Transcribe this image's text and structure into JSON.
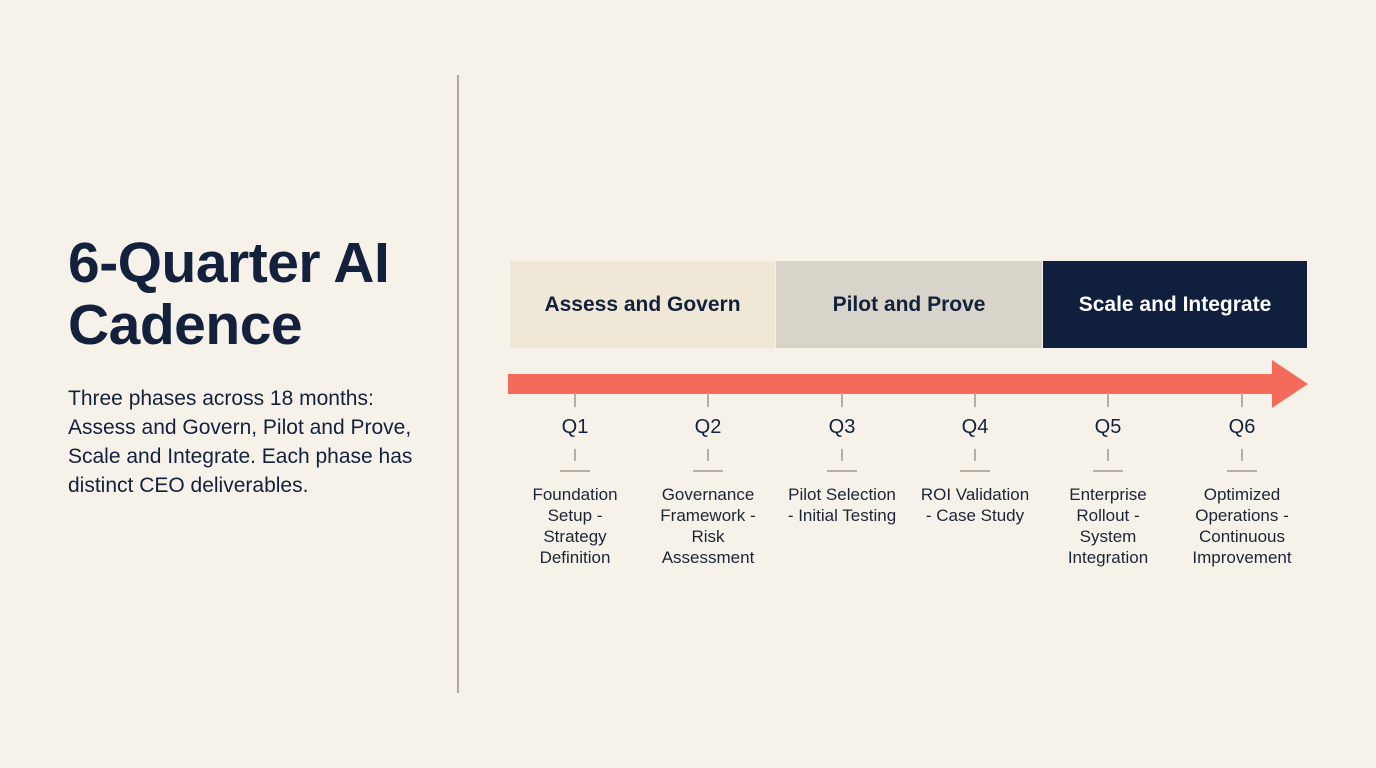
{
  "title": "6-Quarter AI Cadence",
  "description": "Three phases across 18 months: Assess and Govern, Pilot and Prove, Scale and Integrate. Each phase has distinct CEO deliverables.",
  "phases": [
    "Assess and Govern",
    "Pilot and Prove",
    "Scale and Integrate"
  ],
  "quarters": [
    {
      "label": "Q1",
      "description": "Foundation Setup - Strategy Definition"
    },
    {
      "label": "Q2",
      "description": "Governance Framework - Risk Assessment"
    },
    {
      "label": "Q3",
      "description": "Pilot Selection - Initial Testing"
    },
    {
      "label": "Q4",
      "description": "ROI Validation - Case Study"
    },
    {
      "label": "Q5",
      "description": "Enterprise Rollout - System Integration"
    },
    {
      "label": "Q6",
      "description": "Optimized Operations - Continuous Improvement"
    }
  ]
}
